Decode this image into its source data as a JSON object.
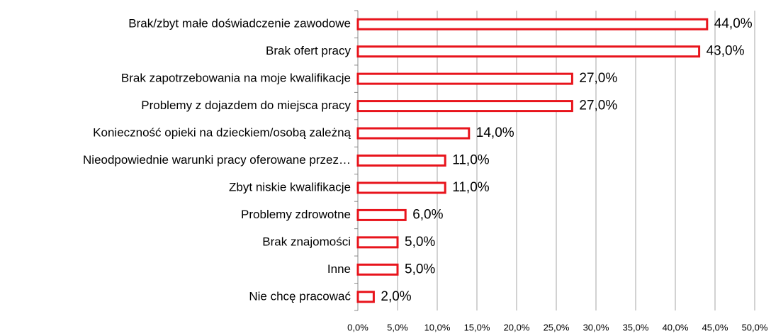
{
  "chart_data": {
    "type": "bar",
    "orientation": "horizontal",
    "categories": [
      "Brak/zbyt małe doświadczenie zawodowe",
      "Brak ofert pracy",
      "Brak zapotrzebowania na moje kwalifikacje",
      "Problemy z dojazdem do miejsca pracy",
      "Konieczność opieki na dzieckiem/osobą zależną",
      "Nieodpowiednie warunki pracy oferowane przez…",
      "Zbyt niskie kwalifikacje",
      "Problemy zdrowotne",
      "Brak znajomości",
      "Inne",
      "Nie chcę pracować"
    ],
    "values": [
      44,
      43,
      27,
      27,
      14,
      11,
      11,
      6,
      5,
      5,
      2
    ],
    "value_labels": [
      "44,0%",
      "43,0%",
      "27,0%",
      "27,0%",
      "14,0%",
      "11,0%",
      "11,0%",
      "6,0%",
      "5,0%",
      "5,0%",
      "2,0%"
    ],
    "color": "#e8141c",
    "xlim": [
      0,
      50
    ],
    "xticks": [
      {
        "value": 0,
        "label": "0,0%"
      },
      {
        "value": 5,
        "label": "5,0%"
      },
      {
        "value": 10,
        "label": "10,0%"
      },
      {
        "value": 15,
        "label": "15,0%"
      },
      {
        "value": 20,
        "label": "20,0%"
      },
      {
        "value": 25,
        "label": "25,0%"
      },
      {
        "value": 30,
        "label": "30,0%"
      },
      {
        "value": 35,
        "label": "35,0%"
      },
      {
        "value": 40,
        "label": "40,0%"
      },
      {
        "value": 45,
        "label": "45,0%"
      },
      {
        "value": 50,
        "label": "50,0%"
      }
    ],
    "grid": true
  }
}
